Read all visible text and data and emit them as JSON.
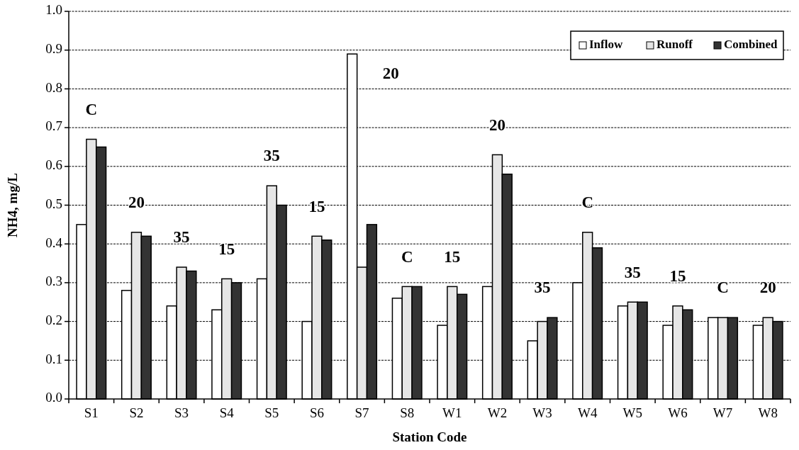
{
  "chart_data": {
    "type": "bar",
    "xlabel": "Station Code",
    "ylabel": "NH4, mg/L",
    "categories": [
      "S1",
      "S2",
      "S3",
      "S4",
      "S5",
      "S6",
      "S7",
      "S8",
      "W1",
      "W2",
      "W3",
      "W4",
      "W5",
      "W6",
      "W7",
      "W8"
    ],
    "series": [
      {
        "name": "Inflow",
        "color": "#ffffff",
        "values": [
          0.45,
          0.28,
          0.24,
          0.23,
          0.31,
          0.2,
          0.89,
          0.26,
          0.19,
          0.29,
          0.15,
          0.3,
          0.24,
          0.19,
          0.21,
          0.19
        ]
      },
      {
        "name": "Runoff",
        "color": "#e6e6e6",
        "values": [
          0.67,
          0.43,
          0.34,
          0.31,
          0.55,
          0.42,
          0.34,
          0.29,
          0.29,
          0.63,
          0.2,
          0.43,
          0.25,
          0.24,
          0.21,
          0.21
        ]
      },
      {
        "name": "Combined",
        "color": "#333333",
        "values": [
          0.65,
          0.42,
          0.33,
          0.3,
          0.5,
          0.41,
          0.45,
          0.29,
          0.27,
          0.58,
          0.21,
          0.39,
          0.25,
          0.23,
          0.21,
          0.2
        ]
      }
    ],
    "ylim": [
      0,
      1
    ],
    "yticks": [
      {
        "value": 0,
        "label": "0.0"
      },
      {
        "value": 0.1,
        "label": "0.1"
      },
      {
        "value": 0.2,
        "label": "0.2"
      },
      {
        "value": 0.3,
        "label": "0.3"
      },
      {
        "value": 0.4,
        "label": "0.4"
      },
      {
        "value": 0.5,
        "label": "0.5"
      },
      {
        "value": 0.6,
        "label": "0.6"
      },
      {
        "value": 0.7,
        "label": "0.7"
      },
      {
        "value": 0.8,
        "label": "0.8"
      },
      {
        "value": 0.9,
        "label": "0.9"
      },
      {
        "value": 1,
        "label": "1.0"
      }
    ],
    "grid": "y",
    "legend": "top right",
    "annotations": [
      "C",
      "20",
      "35",
      "15",
      "35",
      "15",
      "20",
      "C",
      "15",
      "20",
      "35",
      "C",
      "35",
      "15",
      "C",
      "20"
    ]
  }
}
